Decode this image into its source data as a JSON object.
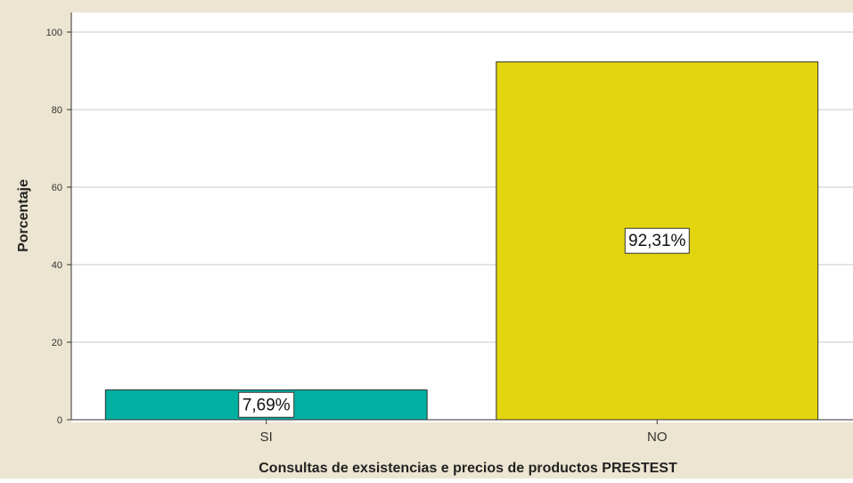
{
  "chart_data": {
    "type": "bar",
    "categories": [
      "SI",
      "NO"
    ],
    "values": [
      7.69,
      92.31
    ],
    "data_labels": [
      "7,69%",
      "92,31%"
    ],
    "xlabel": "Consultas de exsistencias e precios de productos PRESTEST",
    "ylabel": "Porcentaje",
    "ylim": [
      0,
      100
    ],
    "yticks": [
      0,
      20,
      40,
      60,
      80,
      100
    ],
    "grid": true,
    "legend": "none",
    "colors": {
      "frame": "#ece5d1",
      "plot_bg": "#ffffff",
      "gridline": "#c8c8c8",
      "bars": [
        "#00b0a0",
        "#e2d50e"
      ],
      "bar_stroke": "#333333"
    }
  }
}
